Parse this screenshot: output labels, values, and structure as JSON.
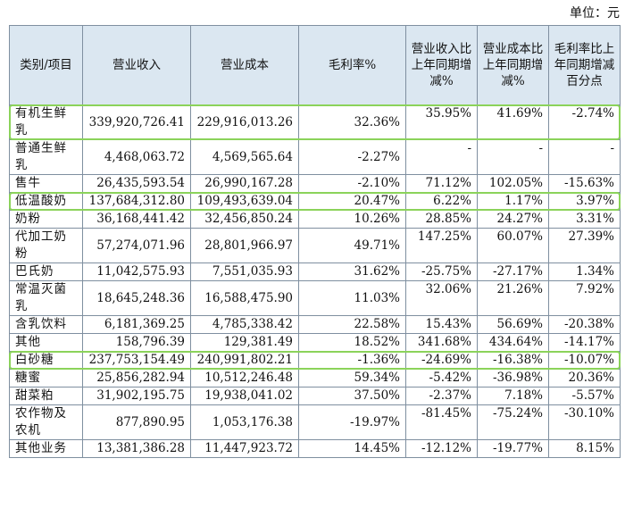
{
  "unit_label": "单位：元",
  "headers": [
    "类别/项目",
    "营业收入",
    "营业成本",
    "毛利率%",
    "营业收入比上年同期增减%",
    "营业成本比上年同期增减%",
    "毛利率比上年同期增减百分点"
  ],
  "rows": [
    {
      "name": "有机生鲜乳",
      "revenue": "339,920,726.41",
      "cost": "229,916,013.26",
      "margin": "32.36%",
      "rev_chg": "35.95%",
      "cost_chg": "41.69%",
      "margin_chg": "-2.74%",
      "tall": true,
      "highlight": true
    },
    {
      "name": "普通生鲜乳",
      "revenue": "4,468,063.72",
      "cost": "4,569,565.64",
      "margin": "-2.27%",
      "rev_chg": "-",
      "cost_chg": "-",
      "margin_chg": "-",
      "tall": true
    },
    {
      "name": "售牛",
      "revenue": "26,435,593.54",
      "cost": "26,990,167.28",
      "margin": "-2.10%",
      "rev_chg": "71.12%",
      "cost_chg": "102.05%",
      "margin_chg": "-15.63%"
    },
    {
      "name": "低温酸奶",
      "revenue": "137,684,312.80",
      "cost": "109,493,639.04",
      "margin": "20.47%",
      "rev_chg": "6.22%",
      "cost_chg": "1.17%",
      "margin_chg": "3.97%",
      "highlight": true
    },
    {
      "name": "奶粉",
      "revenue": "36,168,441.42",
      "cost": "32,456,850.24",
      "margin": "10.26%",
      "rev_chg": "28.85%",
      "cost_chg": "24.27%",
      "margin_chg": "3.31%"
    },
    {
      "name": "代加工奶粉",
      "revenue": "57,274,071.96",
      "cost": "28,801,966.97",
      "margin": "49.71%",
      "rev_chg": "147.25%",
      "cost_chg": "60.07%",
      "margin_chg": "27.39%",
      "tall": true
    },
    {
      "name": "巴氏奶",
      "revenue": "11,042,575.93",
      "cost": "7,551,035.93",
      "margin": "31.62%",
      "rev_chg": "-25.75%",
      "cost_chg": "-27.17%",
      "margin_chg": "1.34%"
    },
    {
      "name": "常温灭菌乳",
      "revenue": "18,645,248.36",
      "cost": "16,588,475.90",
      "margin": "11.03%",
      "rev_chg": "32.06%",
      "cost_chg": "21.26%",
      "margin_chg": "7.92%",
      "tall": true
    },
    {
      "name": "含乳饮料",
      "revenue": "6,181,369.25",
      "cost": "4,785,338.42",
      "margin": "22.58%",
      "rev_chg": "15.43%",
      "cost_chg": "56.69%",
      "margin_chg": "-20.38%"
    },
    {
      "name": "其他",
      "revenue": "158,796.39",
      "cost": "129,381.49",
      "margin": "18.52%",
      "rev_chg": "341.68%",
      "cost_chg": "434.64%",
      "margin_chg": "-14.17%"
    },
    {
      "name": "白砂糖",
      "revenue": "237,753,154.49",
      "cost": "240,991,802.21",
      "margin": "-1.36%",
      "rev_chg": "-24.69%",
      "cost_chg": "-16.38%",
      "margin_chg": "-10.07%",
      "highlight": true
    },
    {
      "name": "糖蜜",
      "revenue": "25,856,282.94",
      "cost": "10,512,246.48",
      "margin": "59.34%",
      "rev_chg": "-5.42%",
      "cost_chg": "-36.98%",
      "margin_chg": "20.36%"
    },
    {
      "name": "甜菜粕",
      "revenue": "31,902,195.75",
      "cost": "19,938,041.02",
      "margin": "37.50%",
      "rev_chg": "-2.37%",
      "cost_chg": "7.18%",
      "margin_chg": "-5.57%"
    },
    {
      "name": "农作物及农机",
      "revenue": "877,890.95",
      "cost": "1,053,176.38",
      "margin": "-19.97%",
      "rev_chg": "-81.45%",
      "cost_chg": "-75.24%",
      "margin_chg": "-30.10%",
      "tall": true
    },
    {
      "name": "其他业务",
      "revenue": "13,381,386.28",
      "cost": "11,447,923.72",
      "margin": "14.45%",
      "rev_chg": "-12.12%",
      "cost_chg": "-19.77%",
      "margin_chg": "8.15%"
    }
  ],
  "highlight_color": "#8bd35a",
  "header_bg": "#dbe7f1"
}
